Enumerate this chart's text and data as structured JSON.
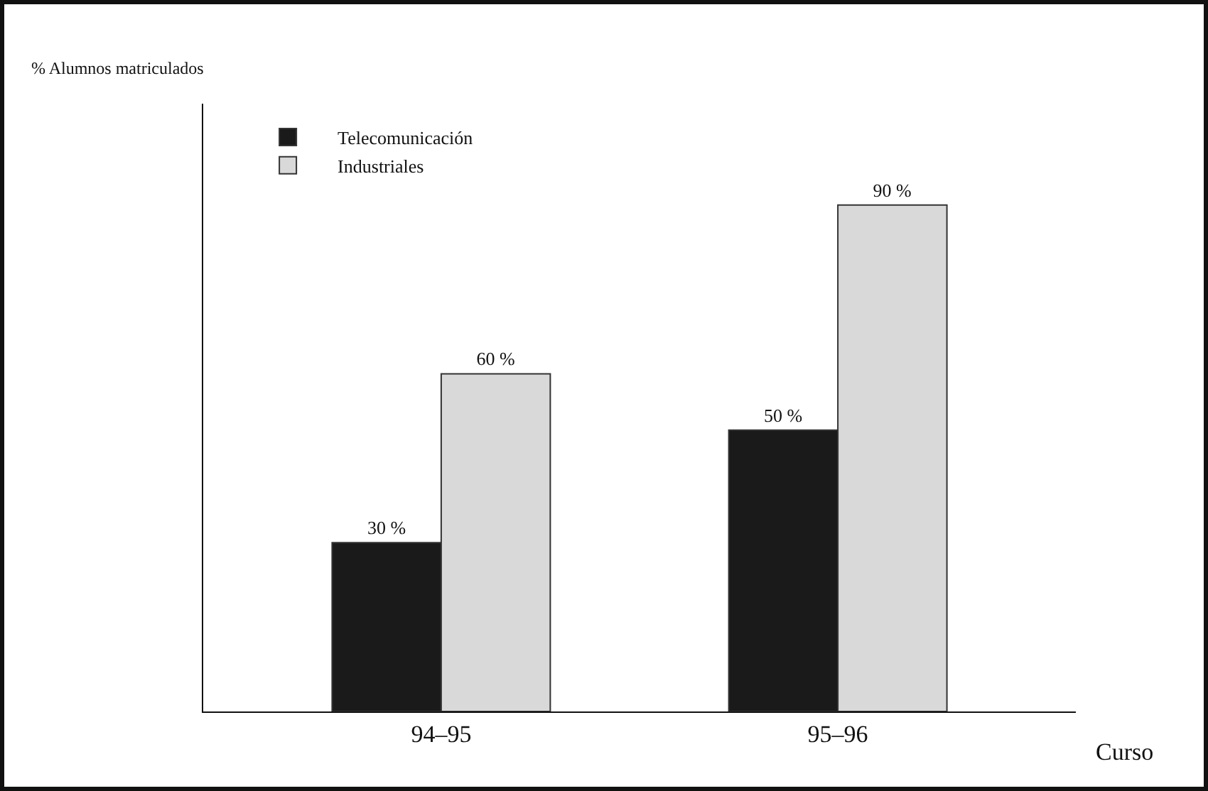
{
  "chart_data": {
    "type": "bar",
    "xlabel": "Curso",
    "ylabel": "% Alumnos matriculados",
    "categories": [
      "94–95",
      "95–96"
    ],
    "series": [
      {
        "name": "Telecomunicación",
        "color": "#1a1a1a",
        "values": [
          30,
          50
        ],
        "value_labels": [
          "30 %",
          "50 %"
        ]
      },
      {
        "name": "Industriales",
        "color": "#d9d9d9",
        "values": [
          60,
          90
        ],
        "value_labels": [
          "60 %",
          "90 %"
        ]
      }
    ],
    "ylim": [
      0,
      108
    ],
    "legend": "top left",
    "grid": false,
    "tick_labels": "x"
  }
}
